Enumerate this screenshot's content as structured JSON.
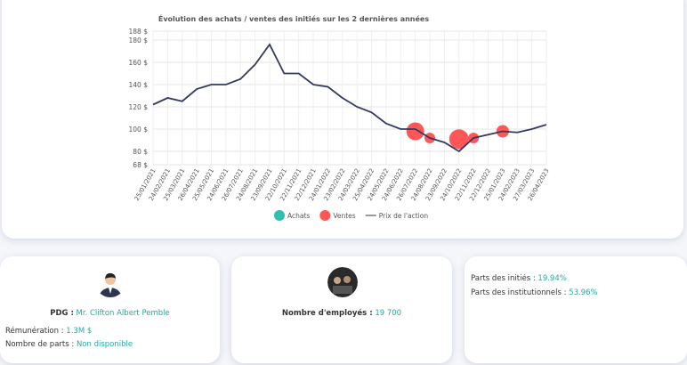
{
  "chart_data": {
    "type": "bubble-line",
    "title": "Évolution des achats / ventes des initiés sur les 2 dernières années",
    "categories": [
      "25/01/2021",
      "24/02/2021",
      "25/03/2021",
      "26/04/2021",
      "25/05/2021",
      "24/06/2021",
      "26/07/2021",
      "24/08/2021",
      "23/09/2021",
      "22/10/2021",
      "22/11/2021",
      "22/12/2021",
      "24/01/2022",
      "23/02/2022",
      "24/03/2022",
      "25/04/2022",
      "24/05/2022",
      "24/06/2022",
      "26/07/2022",
      "24/08/2022",
      "23/09/2022",
      "24/10/2022",
      "22/11/2022",
      "22/12/2022",
      "25/01/2023",
      "24/02/2023",
      "27/03/2023",
      "26/04/2023"
    ],
    "series": [
      {
        "name": "Achats",
        "color": "#2ebfae",
        "values": [
          null,
          null,
          null,
          null,
          null,
          null,
          null,
          null,
          null,
          null,
          null,
          null,
          null,
          null,
          null,
          null,
          null,
          null,
          null,
          null,
          null,
          null,
          null,
          null,
          null,
          null,
          null,
          null
        ]
      },
      {
        "name": "Ventes",
        "color": "#ff5757",
        "values": [
          null,
          null,
          null,
          null,
          null,
          null,
          null,
          null,
          null,
          null,
          null,
          null,
          null,
          null,
          null,
          null,
          null,
          null,
          98,
          92,
          null,
          91,
          92,
          null,
          98,
          null,
          null,
          null
        ],
        "sizes": [
          null,
          null,
          null,
          null,
          null,
          null,
          null,
          null,
          null,
          null,
          null,
          null,
          null,
          null,
          null,
          null,
          null,
          null,
          10,
          6,
          null,
          11,
          6,
          null,
          7,
          null,
          null,
          null
        ]
      },
      {
        "name": "Prix de l'action",
        "color": "#333a5c",
        "values": [
          122,
          128,
          125,
          136,
          140,
          140,
          145,
          158,
          176,
          150,
          150,
          140,
          138,
          128,
          120,
          115,
          105,
          100,
          100,
          92,
          88,
          80,
          92,
          95,
          98,
          97,
          100,
          104
        ]
      }
    ],
    "ylim": [
      68,
      188
    ],
    "yticks": [
      {
        "value": 68,
        "label": "68 $"
      },
      {
        "value": 80,
        "label": "80 $"
      },
      {
        "value": 100,
        "label": "100 $"
      },
      {
        "value": 120,
        "label": "120 $"
      },
      {
        "value": 140,
        "label": "140 $"
      },
      {
        "value": 160,
        "label": "160 $"
      },
      {
        "value": 180,
        "label": "180 $"
      },
      {
        "value": 188,
        "label": "188 $"
      }
    ],
    "grid": true
  },
  "ceo": {
    "label": "PDG :",
    "name": "Mr. Clifton Albert Pemble",
    "pay_label": "Rémunération :",
    "pay": "1.3M $",
    "shares_label": "Nombre de parts :",
    "shares": "Non disponible"
  },
  "employees": {
    "label": "Nombre d'employés :",
    "value": "19 700"
  },
  "ownership": {
    "insiders_label": "Parts des initiés :",
    "insiders": "19.94%",
    "institutions_label": "Parts des institutionnels :",
    "institutions": "53.96%"
  }
}
